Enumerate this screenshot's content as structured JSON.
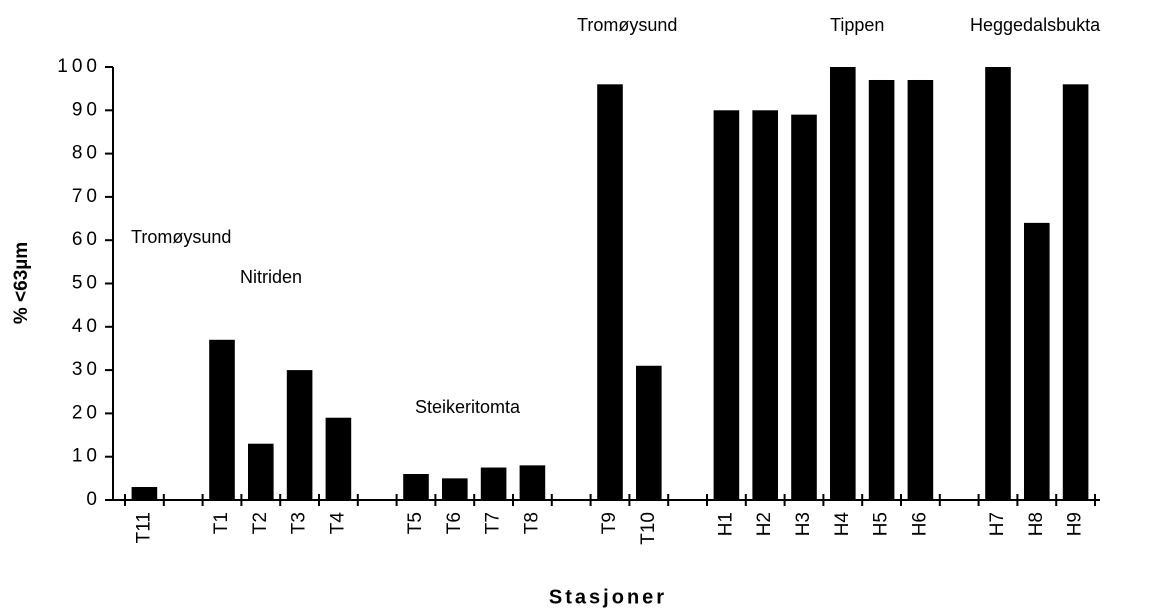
{
  "chart_data": {
    "type": "bar",
    "categories": [
      "T11",
      null,
      "T1",
      "T2",
      "T3",
      "T4",
      null,
      "T5",
      "T6",
      "T7",
      "T8",
      null,
      "T9",
      "T10",
      null,
      "H1",
      "H2",
      "H3",
      "H4",
      "H5",
      "H6",
      null,
      "H7",
      "H8",
      "H9"
    ],
    "values": [
      3,
      null,
      37,
      13,
      30,
      19,
      null,
      6,
      5,
      7.5,
      8,
      null,
      96,
      31,
      null,
      90,
      90,
      89,
      100,
      97,
      97,
      null,
      100,
      64,
      96
    ],
    "color": "#000000",
    "ylim": [
      0,
      100
    ],
    "yticks": [
      0,
      10,
      20,
      30,
      40,
      50,
      60,
      70,
      80,
      90,
      100
    ],
    "y_label": "%   <63µm",
    "x_label": "Stasjoner",
    "annotations": [
      "Tromøysund",
      "Nitriden",
      "Steikeritomta",
      "Tromøysund",
      "Tippen",
      "Heggedalsbukta"
    ]
  }
}
